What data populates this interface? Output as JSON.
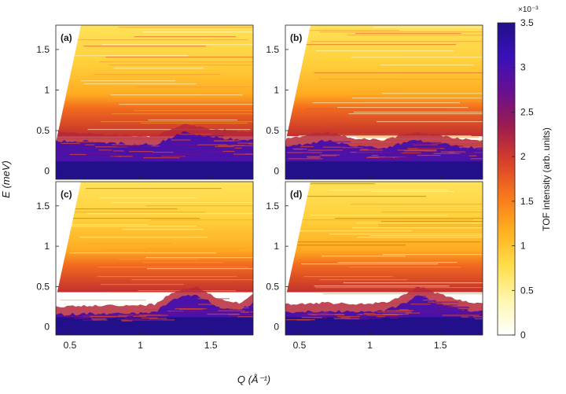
{
  "figure": {
    "ylabel": "E (meV)",
    "xlabel": "Q (Å⁻¹)",
    "colorbar": {
      "label": "TOF intensity (arb. units)",
      "multiplier": "×10⁻³",
      "ticks": [
        "0",
        "0.5",
        "1",
        "1.5",
        "2",
        "2.5",
        "3",
        "3.5"
      ],
      "range": [
        0,
        3.5
      ],
      "colormap": [
        "#ffffff",
        "#fff7b0",
        "#ffdd4a",
        "#ffb020",
        "#f7781c",
        "#d9402a",
        "#9c1c4e",
        "#6a1090",
        "#3a10b8",
        "#22108a"
      ]
    }
  },
  "chart_data": [
    {
      "type": "heatmap",
      "panel_label": "(a)",
      "xlim": [
        0.4,
        1.8
      ],
      "ylim": [
        -0.1,
        1.8
      ],
      "xticks": [
        "0.5",
        "1",
        "1.5"
      ],
      "yticks": [
        "0",
        "0.5",
        "1",
        "1.5"
      ],
      "low_energy_band": [
        [
          0.4,
          0.38
        ],
        [
          0.7,
          0.36
        ],
        [
          0.9,
          0.34
        ],
        [
          1.1,
          0.33
        ],
        [
          1.2,
          0.4
        ],
        [
          1.3,
          0.48
        ],
        [
          1.5,
          0.42
        ],
        [
          1.65,
          0.4
        ],
        [
          1.8,
          0.38
        ]
      ]
    },
    {
      "type": "heatmap",
      "panel_label": "(b)",
      "xlim": [
        0.4,
        1.8
      ],
      "ylim": [
        -0.1,
        1.8
      ],
      "xticks": [
        "0.5",
        "1",
        "1.5"
      ],
      "yticks": [
        "0",
        "0.5",
        "1",
        "1.5"
      ],
      "low_energy_band": [
        [
          0.4,
          0.3
        ],
        [
          0.7,
          0.38
        ],
        [
          0.9,
          0.3
        ],
        [
          1.1,
          0.28
        ],
        [
          1.3,
          0.38
        ],
        [
          1.5,
          0.34
        ],
        [
          1.65,
          0.3
        ],
        [
          1.8,
          0.28
        ]
      ]
    },
    {
      "type": "heatmap",
      "panel_label": "(c)",
      "xlim": [
        0.4,
        1.8
      ],
      "ylim": [
        -0.1,
        1.8
      ],
      "xticks": [
        "0.5",
        "1",
        "1.5"
      ],
      "yticks": [
        "0",
        "0.5",
        "1",
        "1.5"
      ],
      "low_energy_band": [
        [
          0.4,
          0.15
        ],
        [
          0.7,
          0.17
        ],
        [
          0.9,
          0.16
        ],
        [
          1.1,
          0.18
        ],
        [
          1.25,
          0.35
        ],
        [
          1.4,
          0.4
        ],
        [
          1.55,
          0.25
        ],
        [
          1.7,
          0.2
        ],
        [
          1.8,
          0.3
        ]
      ]
    },
    {
      "type": "heatmap",
      "panel_label": "(d)",
      "xlim": [
        0.4,
        1.8
      ],
      "ylim": [
        -0.1,
        1.8
      ],
      "xticks": [
        "0.5",
        "1",
        "1.5"
      ],
      "yticks": [
        "0",
        "0.5",
        "1",
        "1.5"
      ],
      "low_energy_band": [
        [
          0.4,
          0.18
        ],
        [
          0.7,
          0.2
        ],
        [
          0.9,
          0.18
        ],
        [
          1.1,
          0.2
        ],
        [
          1.25,
          0.3
        ],
        [
          1.35,
          0.4
        ],
        [
          1.5,
          0.3
        ],
        [
          1.7,
          0.2
        ],
        [
          1.8,
          0.2
        ]
      ]
    }
  ]
}
